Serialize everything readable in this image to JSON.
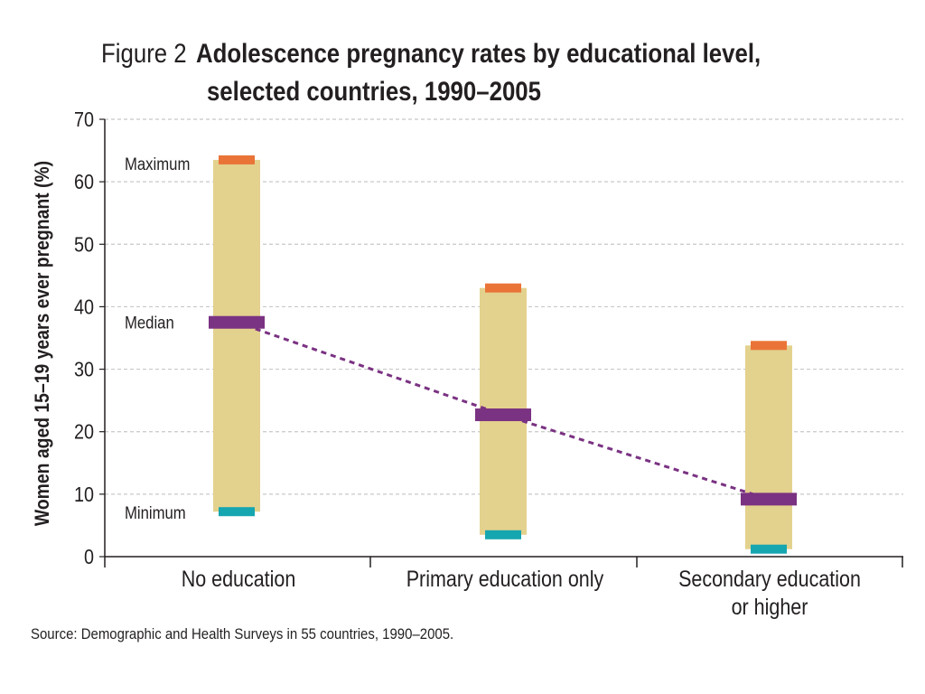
{
  "figure_label": "Figure 2",
  "title_line1": "Adolescence pregnancy rates by educational level,",
  "title_line2": "selected countries, 1990–2005",
  "source": "Source: Demographic and Health Surveys in 55 countries, 1990–2005.",
  "colors": {
    "range_bar": "#e3d18e",
    "maximum": "#ea7438",
    "median": "#7a3282",
    "minimum": "#16a6b0",
    "grid": "#c8c8c8",
    "axis": "#231f20"
  },
  "chart_data": {
    "type": "range",
    "ylabel": "Women aged 15–19 years ever pregnant (%)",
    "ylim": [
      0,
      70
    ],
    "yticks": [
      0,
      10,
      20,
      30,
      40,
      50,
      60,
      70
    ],
    "grid": true,
    "categories": [
      [
        "No education"
      ],
      [
        "Primary education only"
      ],
      [
        "Secondary education",
        "or higher"
      ]
    ],
    "maximum": [
      63.5,
      43,
      33.8
    ],
    "median": [
      37.5,
      22.7,
      9.2
    ],
    "minimum": [
      7.2,
      3.5,
      1.2
    ],
    "annotations": {
      "maximum": "Maximum",
      "median": "Median",
      "minimum": "Minimum"
    },
    "median_trend_line": "dashed"
  }
}
